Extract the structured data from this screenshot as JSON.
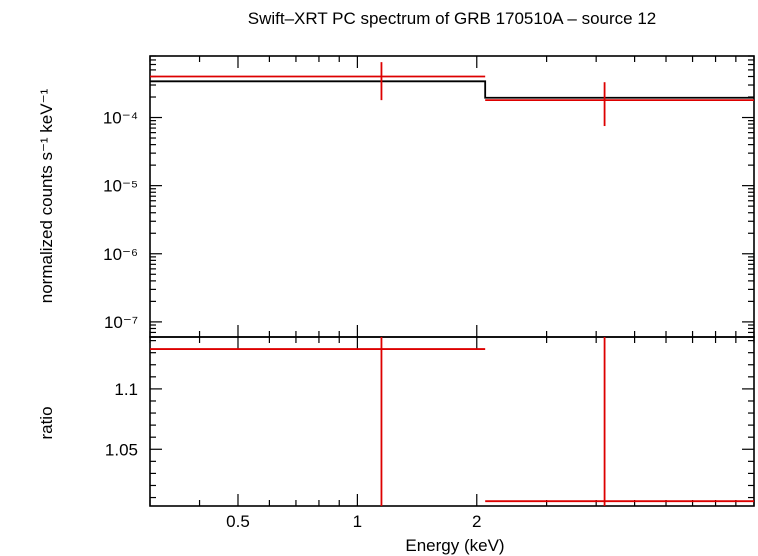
{
  "chart_data": {
    "title": "Swift–XRT PC spectrum of GRB 170510A – source 12",
    "xlabel": "Energy (keV)",
    "x_scale": "log",
    "xlim": [
      0.3,
      10
    ],
    "x_ticks": [
      {
        "value": 0.5,
        "label": "0.5"
      },
      {
        "value": 1,
        "label": "1"
      },
      {
        "value": 2,
        "label": "2"
      }
    ],
    "panels": [
      {
        "name": "spectrum",
        "type": "line",
        "ylabel": "normalized counts s⁻¹ keV⁻¹",
        "y_scale": "log",
        "ylim": [
          6e-08,
          0.0008
        ],
        "y_ticks": [
          {
            "value": 0.0001,
            "label": "10⁻⁴"
          },
          {
            "value": 1e-05,
            "label": "10⁻⁵"
          },
          {
            "value": 1e-06,
            "label": "10⁻⁶"
          },
          {
            "value": 1e-07,
            "label": "10⁻⁷"
          }
        ],
        "data": [
          {
            "x": 1.15,
            "xlo": 0.3,
            "xhi": 2.1,
            "y": 0.0004,
            "ylo": 0.00018,
            "yhi": 0.00065
          },
          {
            "x": 4.2,
            "xlo": 2.1,
            "xhi": 10,
            "y": 0.00018,
            "ylo": 7.5e-05,
            "yhi": 0.00033
          }
        ],
        "model": [
          {
            "xlo": 0.3,
            "xhi": 2.1,
            "y": 0.00034
          },
          {
            "xlo": 2.1,
            "xhi": 10,
            "y": 0.000195
          }
        ]
      },
      {
        "name": "ratio",
        "type": "scatter",
        "ylabel": "ratio",
        "y_scale": "linear",
        "ylim": [
          1.003,
          1.143
        ],
        "y_ticks": [
          {
            "value": 1.1,
            "label": "1.1"
          },
          {
            "value": 1.05,
            "label": "1.05"
          }
        ],
        "data": [
          {
            "x": 1.15,
            "xlo": 0.3,
            "xhi": 2.1,
            "y": 1.133,
            "ylo": 1.003,
            "yhi": 1.143
          },
          {
            "x": 4.2,
            "xlo": 2.1,
            "xhi": 10,
            "y": 1.007,
            "ylo": 1.003,
            "yhi": 1.143
          }
        ]
      }
    ],
    "colors": {
      "data": "#dd0000",
      "model": "#000000",
      "frame": "#000000"
    },
    "grid": false,
    "legend": "none"
  }
}
